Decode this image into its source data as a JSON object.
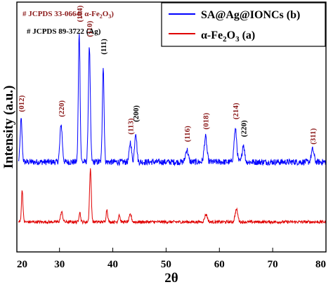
{
  "chart_data": {
    "type": "line",
    "xlabel": "2θ",
    "ylabel": "Intensity (a.u.)",
    "xlim": [
      22,
      80
    ],
    "xticks": [
      20,
      30,
      40,
      50,
      60,
      70,
      80
    ],
    "yticks_shown": false,
    "grid": false,
    "legend_position": "top-right",
    "series": [
      {
        "name": "SA@Ag@IONCs (b)",
        "color": "#0000ff",
        "baseline": 0.36,
        "noise": 0.025,
        "peaks": [
          {
            "x": 22.8,
            "height": 0.17,
            "width": 0.18
          },
          {
            "x": 30.3,
            "height": 0.15,
            "width": 0.22
          },
          {
            "x": 33.7,
            "height": 0.52,
            "width": 0.16
          },
          {
            "x": 35.6,
            "height": 0.46,
            "width": 0.18
          },
          {
            "x": 38.2,
            "height": 0.38,
            "width": 0.16
          },
          {
            "x": 43.3,
            "height": 0.08,
            "width": 0.2
          },
          {
            "x": 44.3,
            "height": 0.12,
            "width": 0.2
          },
          {
            "x": 53.9,
            "height": 0.05,
            "width": 0.25
          },
          {
            "x": 57.4,
            "height": 0.1,
            "width": 0.25
          },
          {
            "x": 63.0,
            "height": 0.13,
            "width": 0.25
          },
          {
            "x": 64.5,
            "height": 0.07,
            "width": 0.22
          },
          {
            "x": 77.5,
            "height": 0.05,
            "width": 0.25
          }
        ]
      },
      {
        "name": "α-Fe2O3 (a)",
        "color": "#e00000",
        "baseline": 0.12,
        "noise": 0.012,
        "peaks": [
          {
            "x": 23.0,
            "height": 0.13,
            "width": 0.14
          },
          {
            "x": 30.4,
            "height": 0.04,
            "width": 0.2
          },
          {
            "x": 33.8,
            "height": 0.04,
            "width": 0.15
          },
          {
            "x": 35.8,
            "height": 0.21,
            "width": 0.16
          },
          {
            "x": 38.9,
            "height": 0.05,
            "width": 0.15
          },
          {
            "x": 41.2,
            "height": 0.03,
            "width": 0.15
          },
          {
            "x": 43.3,
            "height": 0.03,
            "width": 0.2
          },
          {
            "x": 57.5,
            "height": 0.03,
            "width": 0.25
          },
          {
            "x": 63.2,
            "height": 0.05,
            "width": 0.25
          }
        ]
      }
    ],
    "peak_labels": [
      {
        "text": "(012)",
        "x": 22.8,
        "y": 0.56,
        "color": "red"
      },
      {
        "text": "(220)",
        "x": 30.3,
        "y": 0.54,
        "color": "red"
      },
      {
        "text": "(104)",
        "x": 33.7,
        "y": 0.92,
        "color": "red"
      },
      {
        "text": "(110)",
        "x": 35.6,
        "y": 0.86,
        "color": "red"
      },
      {
        "text": "(111)",
        "x": 38.2,
        "y": 0.79,
        "color": "black"
      },
      {
        "text": "(113)",
        "x": 43.3,
        "y": 0.47,
        "color": "red"
      },
      {
        "text": "(200)",
        "x": 44.3,
        "y": 0.52,
        "color": "black"
      },
      {
        "text": "(116)",
        "x": 53.9,
        "y": 0.44,
        "color": "red"
      },
      {
        "text": "(018)",
        "x": 57.4,
        "y": 0.49,
        "color": "red"
      },
      {
        "text": "(214)",
        "x": 63.0,
        "y": 0.53,
        "color": "red"
      },
      {
        "text": "(220)",
        "x": 64.5,
        "y": 0.46,
        "color": "black"
      },
      {
        "text": "(311)",
        "x": 77.5,
        "y": 0.43,
        "color": "red"
      }
    ],
    "annotations": [
      {
        "text": "# JCPDS 33-0664( α-Fe2O3)",
        "color": "red"
      },
      {
        "text": "# JCPDS 89-3722 (Ag)",
        "color": "black"
      }
    ]
  }
}
